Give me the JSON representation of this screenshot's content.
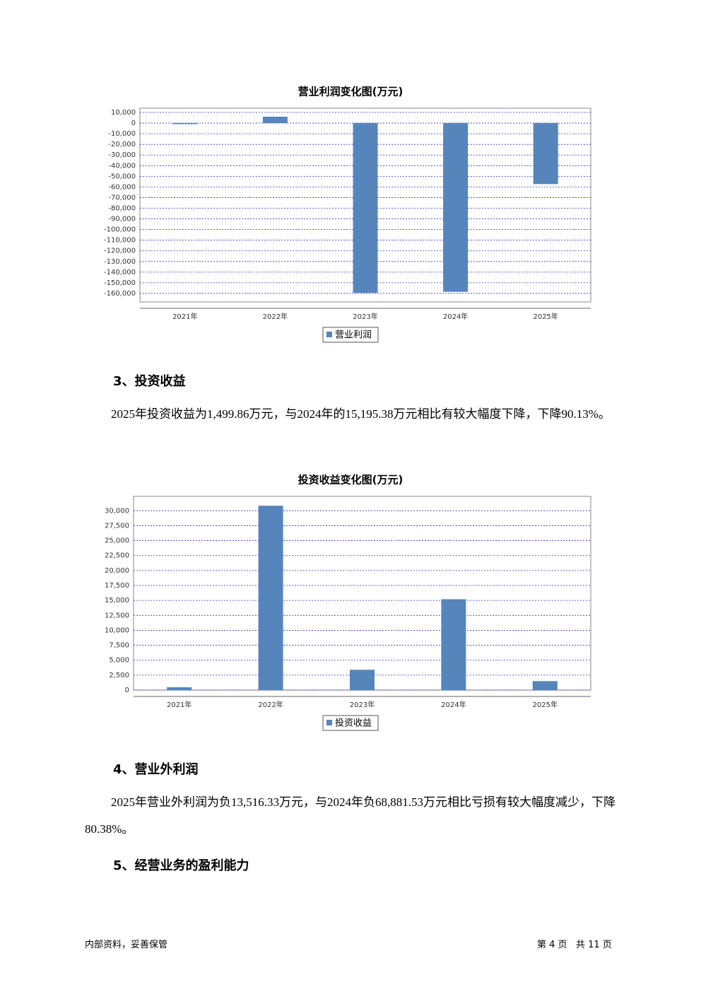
{
  "chart_data": [
    {
      "type": "bar",
      "title": "营业利润变化图(万元)",
      "categories": [
        "2021年",
        "2022年",
        "2023年",
        "2024年",
        "2025年"
      ],
      "series": [
        {
          "name": "营业利润",
          "color": "#5585bb",
          "values": [
            -1000,
            6000,
            -159500,
            -158500,
            -57300
          ]
        }
      ],
      "ylim": [
        -168000,
        14000
      ],
      "yticks": [
        {
          "value": 10000,
          "label": "10,000"
        },
        0,
        {
          "value": -10000,
          "label": "-10,000"
        },
        {
          "value": -20000,
          "label": "-20,000"
        },
        {
          "value": -30000,
          "label": "-30,000"
        },
        {
          "value": -40000,
          "label": "-40,000"
        },
        {
          "value": -50000,
          "label": "-50,000"
        },
        {
          "value": -60000,
          "label": "-60,000"
        },
        {
          "value": -70000,
          "label": "-70,000"
        },
        {
          "value": -80000,
          "label": "-80,000"
        },
        {
          "value": -90000,
          "label": "-90,000"
        },
        {
          "value": -100000,
          "label": "-100,000"
        },
        {
          "value": -110000,
          "label": "-110,000"
        },
        {
          "value": -120000,
          "label": "-120,000"
        },
        {
          "value": -130000,
          "label": "-130,000"
        },
        {
          "value": -140000,
          "label": "-140,000"
        },
        {
          "value": -150000,
          "label": "-150,000"
        },
        {
          "value": -160000,
          "label": "-160,000"
        }
      ],
      "grid": true
    },
    {
      "type": "bar",
      "title": "投资收益变化图(万元)",
      "categories": [
        "2021年",
        "2022年",
        "2023年",
        "2024年",
        "2025年"
      ],
      "series": [
        {
          "name": "投资收益",
          "color": "#5585bb",
          "values": [
            470,
            30830,
            3400,
            15195.38,
            1499.86
          ]
        }
      ],
      "ylim": [
        0,
        32400
      ],
      "yticks": [
        0,
        {
          "value": 2500,
          "label": "2,500"
        },
        {
          "value": 5000,
          "label": "5,000"
        },
        {
          "value": 7500,
          "label": "7,500"
        },
        {
          "value": 10000,
          "label": "10,000"
        },
        {
          "value": 12500,
          "label": "12,500"
        },
        {
          "value": 15000,
          "label": "15,000"
        },
        {
          "value": 17500,
          "label": "17,500"
        },
        {
          "value": 20000,
          "label": "20,000"
        },
        {
          "value": 22500,
          "label": "22,500"
        },
        {
          "value": 25000,
          "label": "25,000"
        },
        {
          "value": 27500,
          "label": "27,500"
        },
        {
          "value": 30000,
          "label": "30,000"
        }
      ],
      "grid": true
    }
  ],
  "sections": [
    {
      "heading": "3、投资收益",
      "paragraph": "2025年投资收益为1,499.86万元，与2024年的15,195.38万元相比有较大幅度下降，下降90.13%。"
    },
    {
      "heading": "4、营业外利润",
      "paragraph": "2025年营业外利润为负13,516.33万元，与2024年负68,881.53万元相比亏损有较大幅度减少，下降80.38%。"
    },
    {
      "heading": "5、经营业务的盈利能力"
    }
  ],
  "footer": {
    "left": "内部资料，妥善保管",
    "right": "第 4 页   共 11 页"
  }
}
